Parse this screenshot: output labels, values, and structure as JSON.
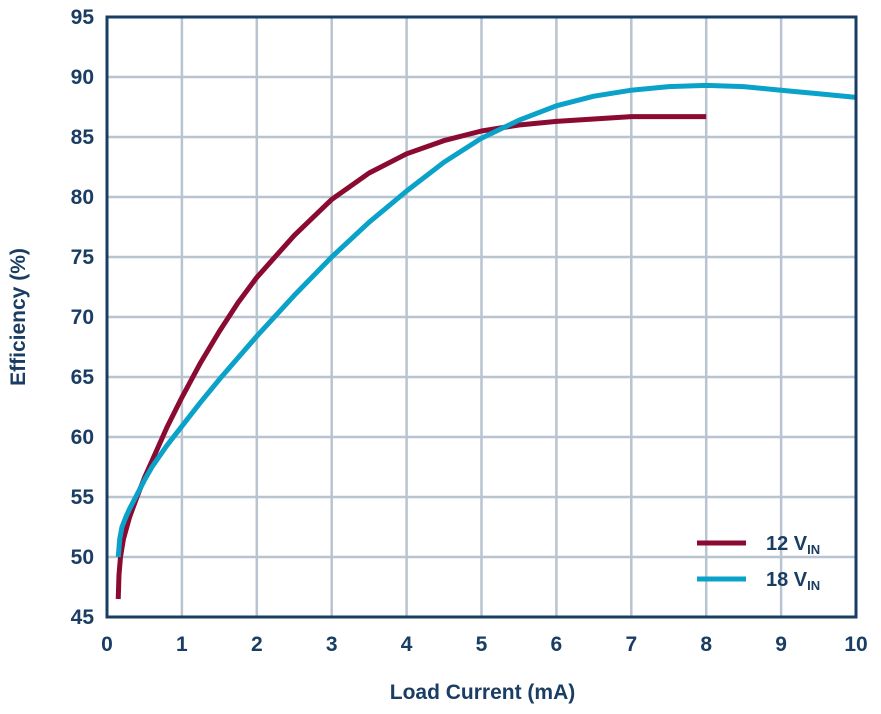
{
  "chart_data": {
    "type": "line",
    "title": "",
    "xlabel": "Load Current (mA)",
    "ylabel": "Efficiency (%)",
    "xlim": [
      0,
      10
    ],
    "ylim": [
      45,
      95
    ],
    "x_ticks": [
      "0",
      "1",
      "2",
      "3",
      "4",
      "5",
      "6",
      "7",
      "8",
      "9",
      "10"
    ],
    "y_ticks": [
      "45",
      "50",
      "55",
      "60",
      "65",
      "70",
      "75",
      "80",
      "85",
      "90",
      "95"
    ],
    "grid": true,
    "legend_position": "bottom-right",
    "colors": {
      "axis": "#1a3d63",
      "grid": "#b8c4d0"
    },
    "series": [
      {
        "name": "12 V",
        "name_sub": "IN",
        "color": "#8b0a32",
        "x": [
          0.15,
          0.16,
          0.18,
          0.22,
          0.3,
          0.4,
          0.5,
          0.6,
          0.8,
          1.0,
          1.25,
          1.5,
          1.75,
          2.0,
          2.5,
          3.0,
          3.5,
          4.0,
          4.5,
          5.0,
          5.5,
          6.0,
          6.5,
          7.0,
          7.5,
          8.0
        ],
        "y": [
          46.5,
          48.5,
          50.0,
          51.5,
          53.3,
          55.0,
          56.6,
          58.0,
          60.8,
          63.3,
          66.2,
          68.8,
          71.2,
          73.3,
          76.8,
          79.8,
          82.0,
          83.6,
          84.7,
          85.5,
          86.0,
          86.3,
          86.5,
          86.7,
          86.7,
          86.7
        ]
      },
      {
        "name": "18 V",
        "name_sub": "IN",
        "color": "#0aa2c8",
        "x": [
          0.15,
          0.17,
          0.2,
          0.25,
          0.3,
          0.4,
          0.5,
          0.6,
          0.8,
          1.0,
          1.25,
          1.5,
          1.75,
          2.0,
          2.5,
          3.0,
          3.5,
          4.0,
          4.5,
          5.0,
          5.5,
          6.0,
          6.5,
          7.0,
          7.5,
          8.0,
          8.5,
          9.0,
          9.5,
          10.0
        ],
        "y": [
          50.0,
          51.5,
          52.5,
          53.3,
          54.0,
          55.2,
          56.4,
          57.5,
          59.3,
          60.9,
          62.9,
          64.8,
          66.6,
          68.4,
          71.8,
          75.0,
          77.9,
          80.5,
          82.9,
          84.9,
          86.4,
          87.6,
          88.4,
          88.9,
          89.2,
          89.3,
          89.2,
          88.9,
          88.6,
          88.3
        ]
      }
    ]
  }
}
